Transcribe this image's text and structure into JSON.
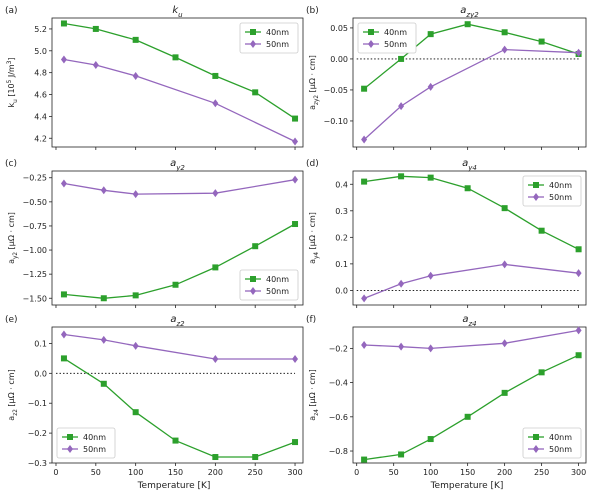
{
  "figure": {
    "shared_xlabel": "Temperature [K]"
  },
  "colors": {
    "40nm": "#2ca02c",
    "50nm": "#9467bd",
    "frame": "#222222",
    "zero_line": "#000000"
  },
  "chart_data": [
    {
      "panel_label": "(a)",
      "type": "line",
      "title_main": "k",
      "title_sub": "u",
      "ylabel": "k_u [10^5 J/m^3]",
      "xlim": [
        -5,
        310
      ],
      "ylim": [
        4.12,
        5.3
      ],
      "yticks": [
        4.2,
        4.4,
        4.6,
        4.8,
        5.0,
        5.2
      ],
      "ytick_labels": [
        "4.2",
        "4.4",
        "4.6",
        "4.8",
        "5.0",
        "5.2"
      ],
      "xticks": [],
      "xtick_labels": [],
      "zero_line": false,
      "legend": "top-right",
      "series": [
        {
          "name": "40nm",
          "marker": "square",
          "x": [
            10,
            50,
            100,
            150,
            200,
            250,
            300
          ],
          "y": [
            5.25,
            5.2,
            5.1,
            4.94,
            4.77,
            4.62,
            4.38
          ]
        },
        {
          "name": "50nm",
          "marker": "diamond",
          "x": [
            10,
            50,
            100,
            200,
            300
          ],
          "y": [
            4.92,
            4.87,
            4.77,
            4.52,
            4.17
          ]
        }
      ]
    },
    {
      "panel_label": "(b)",
      "type": "line",
      "title_main": "a",
      "title_sub": "zy2",
      "ylabel": "a_zy2 [μΩ · cm]",
      "xlim": [
        -5,
        310
      ],
      "ylim": [
        -0.142,
        0.066
      ],
      "yticks": [
        -0.1,
        -0.05,
        0.0,
        0.05
      ],
      "ytick_labels": [
        "−0.10",
        "−0.05",
        "0.00",
        "0.05"
      ],
      "xticks": [],
      "xtick_labels": [],
      "zero_line": true,
      "legend": "top-left",
      "series": [
        {
          "name": "40nm",
          "marker": "square",
          "x": [
            10,
            60,
            100,
            150,
            200,
            250,
            300
          ],
          "y": [
            -0.048,
            0.0,
            0.04,
            0.056,
            0.043,
            0.028,
            0.008
          ]
        },
        {
          "name": "50nm",
          "marker": "diamond",
          "x": [
            10,
            60,
            100,
            200,
            300
          ],
          "y": [
            -0.13,
            -0.076,
            -0.045,
            0.015,
            0.01
          ]
        }
      ]
    },
    {
      "panel_label": "(c)",
      "type": "line",
      "title_main": "a",
      "title_sub": "y2",
      "ylabel": "a_y2 [μΩ · cm]",
      "xlim": [
        -5,
        310
      ],
      "ylim": [
        -1.57,
        -0.18
      ],
      "yticks": [
        -1.5,
        -1.25,
        -1.0,
        -0.75,
        -0.5,
        -0.25
      ],
      "ytick_labels": [
        "−1.50",
        "−1.25",
        "−1.00",
        "−0.75",
        "−0.50",
        "−0.25"
      ],
      "xticks": [],
      "xtick_labels": [],
      "zero_line": false,
      "legend": "bottom-right",
      "series": [
        {
          "name": "40nm",
          "marker": "square",
          "x": [
            10,
            60,
            100,
            150,
            200,
            250,
            300
          ],
          "y": [
            -1.46,
            -1.5,
            -1.47,
            -1.36,
            -1.18,
            -0.96,
            -0.73
          ]
        },
        {
          "name": "50nm",
          "marker": "diamond",
          "x": [
            10,
            60,
            100,
            200,
            300
          ],
          "y": [
            -0.31,
            -0.38,
            -0.42,
            -0.41,
            -0.27
          ]
        }
      ]
    },
    {
      "panel_label": "(d)",
      "type": "line",
      "title_main": "a",
      "title_sub": "y4",
      "ylabel": "a_y4 [μΩ · cm]",
      "xlim": [
        -5,
        310
      ],
      "ylim": [
        -0.055,
        0.45
      ],
      "yticks": [
        0.0,
        0.1,
        0.2,
        0.3,
        0.4
      ],
      "ytick_labels": [
        "0.0",
        "0.1",
        "0.2",
        "0.3",
        "0.4"
      ],
      "xticks": [],
      "xtick_labels": [],
      "zero_line": true,
      "legend": "top-right",
      "series": [
        {
          "name": "40nm",
          "marker": "square",
          "x": [
            10,
            60,
            100,
            150,
            200,
            250,
            300
          ],
          "y": [
            0.41,
            0.43,
            0.425,
            0.385,
            0.31,
            0.225,
            0.155
          ]
        },
        {
          "name": "50nm",
          "marker": "diamond",
          "x": [
            10,
            60,
            100,
            200,
            300
          ],
          "y": [
            -0.03,
            0.025,
            0.055,
            0.098,
            0.065
          ]
        }
      ]
    },
    {
      "panel_label": "(e)",
      "type": "line",
      "title_main": "a",
      "title_sub": "z2",
      "ylabel": "a_z2 [μΩ · cm]",
      "xlim": [
        -5,
        310
      ],
      "ylim": [
        -0.3,
        0.155
      ],
      "yticks": [
        -0.3,
        -0.2,
        -0.1,
        0.0,
        0.1
      ],
      "ytick_labels": [
        "−0.3",
        "−0.2",
        "−0.1",
        "0.0",
        "0.1"
      ],
      "xticks": [
        0,
        50,
        100,
        150,
        200,
        250,
        300
      ],
      "xtick_labels": [
        "0",
        "50",
        "100",
        "150",
        "200",
        "250",
        "300"
      ],
      "zero_line": true,
      "legend": "bottom-left",
      "series": [
        {
          "name": "40nm",
          "marker": "square",
          "x": [
            10,
            60,
            100,
            150,
            200,
            250,
            300
          ],
          "y": [
            0.05,
            -0.035,
            -0.13,
            -0.225,
            -0.28,
            -0.28,
            -0.23
          ]
        },
        {
          "name": "50nm",
          "marker": "diamond",
          "x": [
            10,
            60,
            100,
            200,
            300
          ],
          "y": [
            0.13,
            0.112,
            0.092,
            0.048,
            0.048
          ]
        }
      ]
    },
    {
      "panel_label": "(f)",
      "type": "line",
      "title_main": "a",
      "title_sub": "z4",
      "ylabel": "a_z4 [μΩ · cm]",
      "xlim": [
        -5,
        310
      ],
      "ylim": [
        -0.87,
        -0.075
      ],
      "yticks": [
        -0.8,
        -0.6,
        -0.4,
        -0.2
      ],
      "ytick_labels": [
        "−0.8",
        "−0.6",
        "−0.4",
        "−0.2"
      ],
      "xticks": [
        0,
        50,
        100,
        150,
        200,
        250,
        300
      ],
      "xtick_labels": [
        "0",
        "50",
        "100",
        "150",
        "200",
        "250",
        "300"
      ],
      "zero_line": false,
      "legend": "bottom-right",
      "series": [
        {
          "name": "40nm",
          "marker": "square",
          "x": [
            10,
            60,
            100,
            150,
            200,
            250,
            300
          ],
          "y": [
            -0.85,
            -0.82,
            -0.73,
            -0.6,
            -0.46,
            -0.34,
            -0.24
          ]
        },
        {
          "name": "50nm",
          "marker": "diamond",
          "x": [
            10,
            60,
            100,
            200,
            300
          ],
          "y": [
            -0.18,
            -0.19,
            -0.2,
            -0.17,
            -0.095
          ]
        }
      ]
    }
  ]
}
